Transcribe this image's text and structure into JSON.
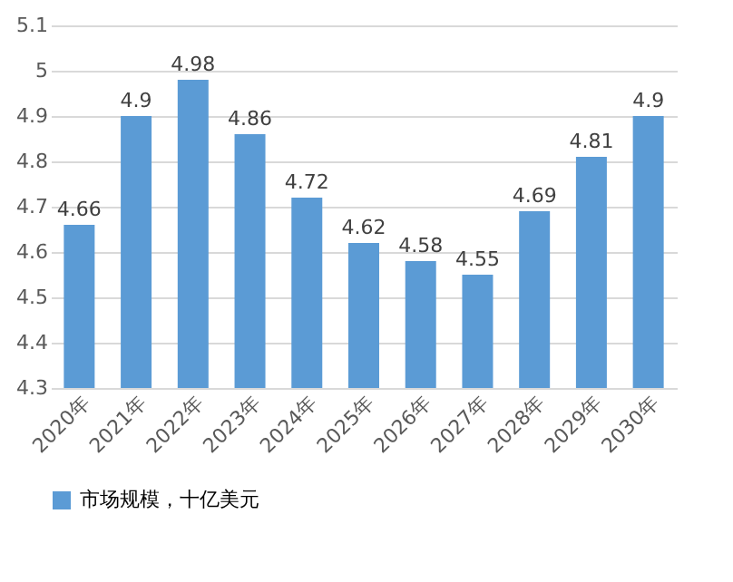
{
  "chart_data": {
    "type": "bar",
    "categories": [
      "2020年",
      "2021年",
      "2022年",
      "2023年",
      "2024年",
      "2025年",
      "2026年",
      "2027年",
      "2028年",
      "2029年",
      "2030年"
    ],
    "series": [
      {
        "name": "市场规模，十亿美元",
        "color": "#5b9bd5",
        "values": [
          4.66,
          4.9,
          4.98,
          4.86,
          4.72,
          4.62,
          4.58,
          4.55,
          4.69,
          4.81,
          4.9
        ]
      }
    ],
    "ylim": [
      4.3,
      5.1
    ],
    "yticks": [
      4.3,
      4.4,
      4.5,
      4.6,
      4.7,
      4.8,
      4.9,
      5,
      5.1
    ],
    "grid": "y",
    "legend": "bottom",
    "data_labels": true
  }
}
